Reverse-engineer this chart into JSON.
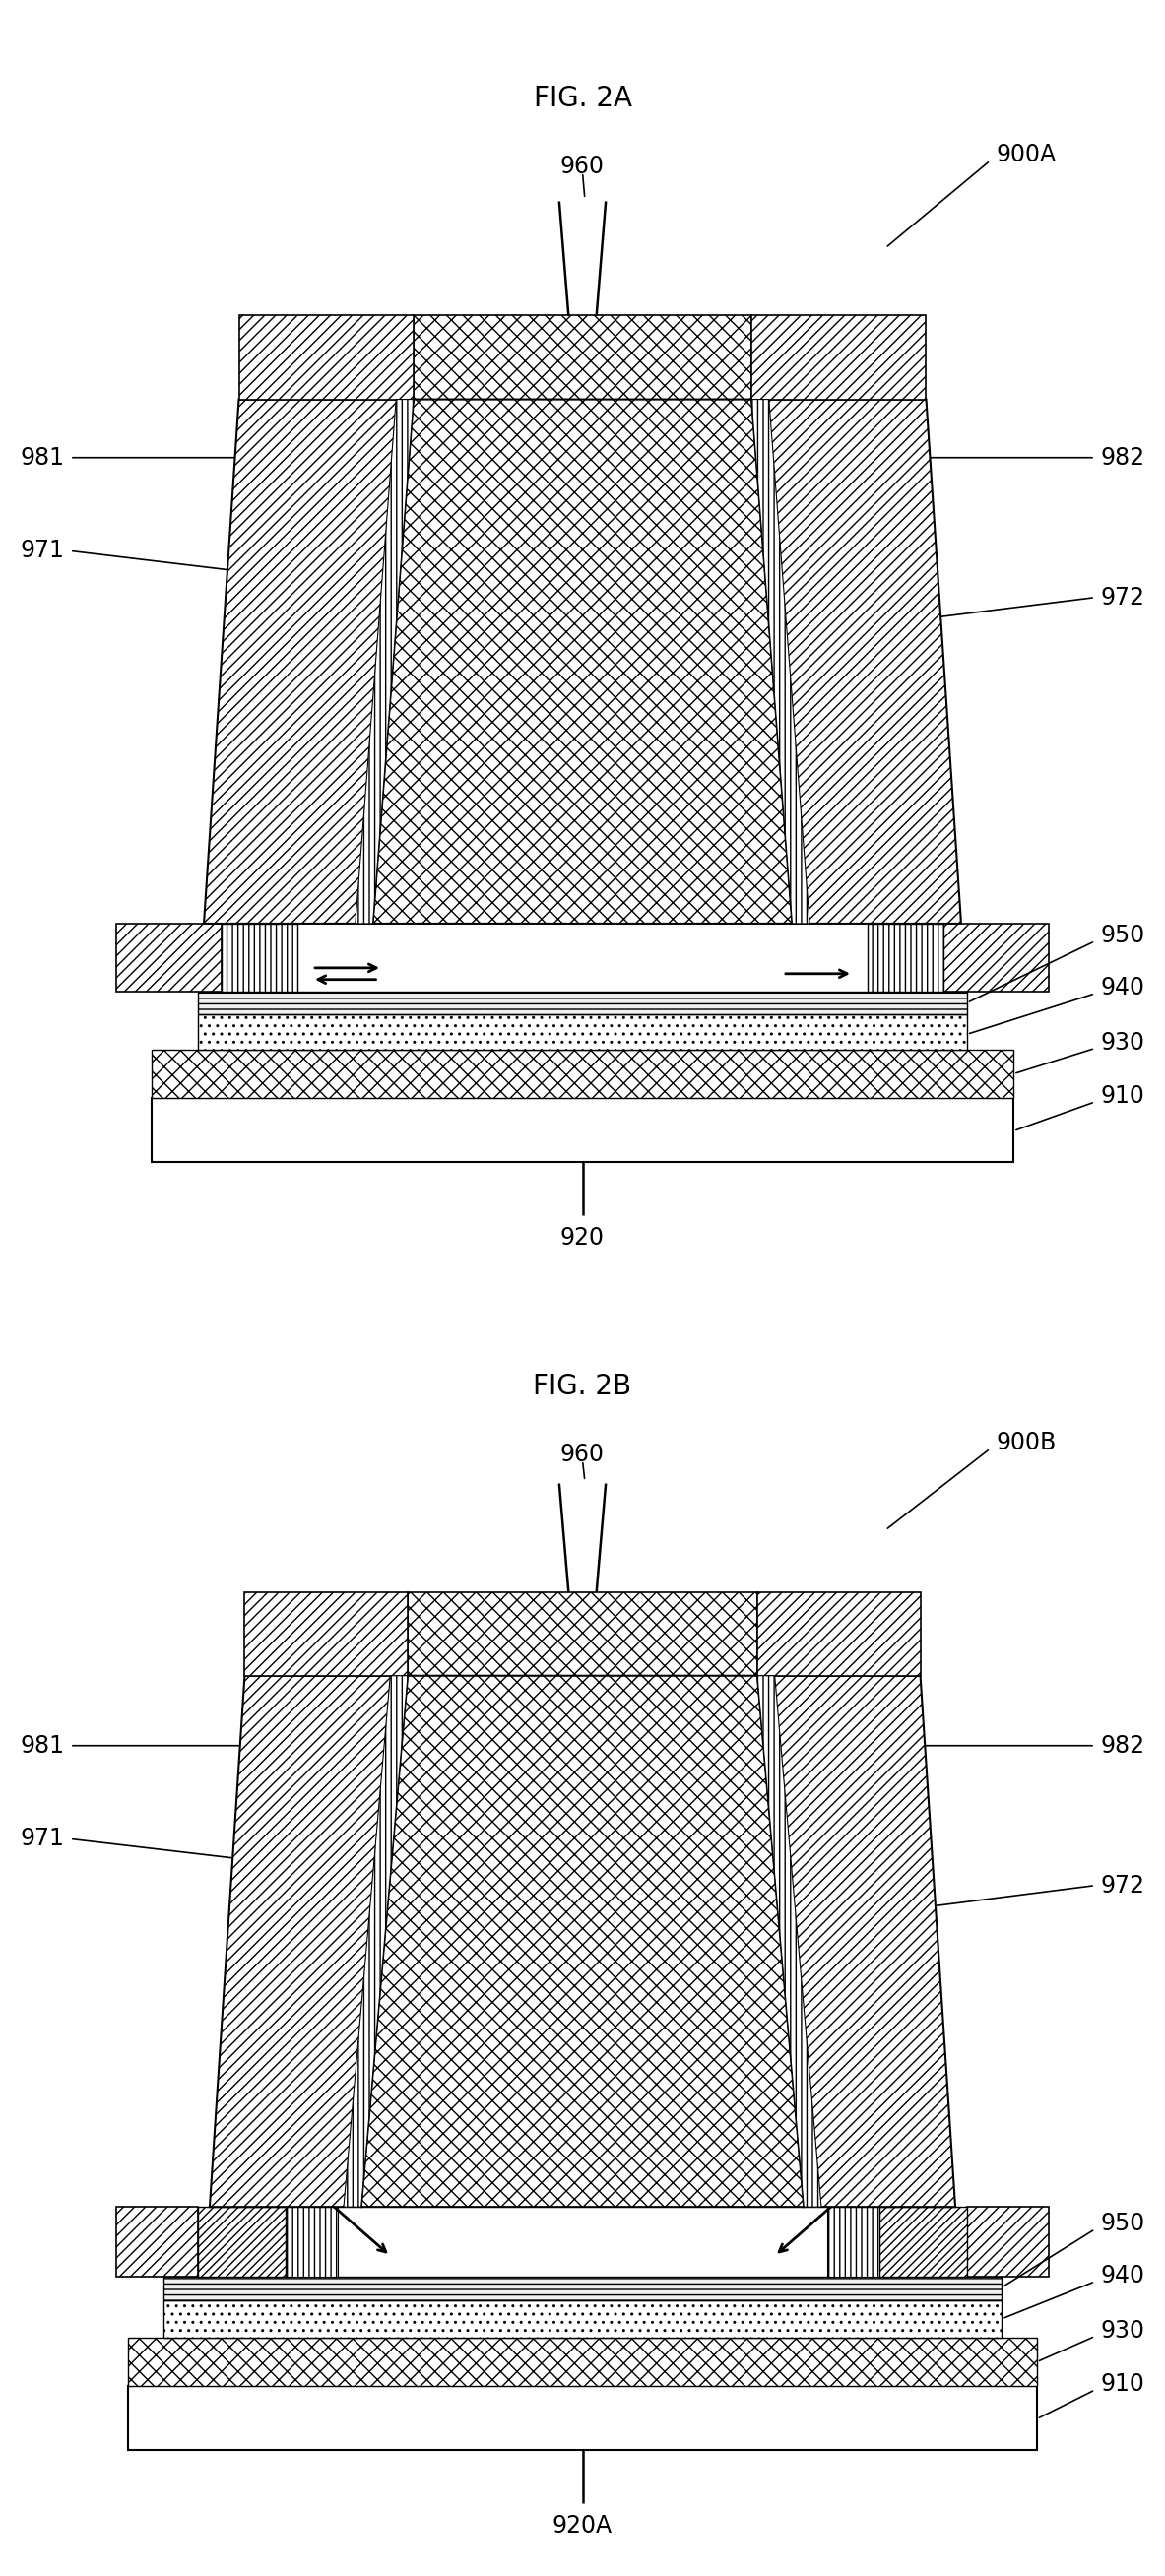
{
  "fig_title_A": "FIG. 2A",
  "fig_title_B": "FIG. 2B",
  "label_900A": "900A",
  "label_900B": "900B",
  "label_960": "960",
  "label_981": "981",
  "label_982": "982",
  "label_971": "971",
  "label_972": "972",
  "label_950": "950",
  "label_940": "940",
  "label_930": "930",
  "label_910": "910",
  "label_920": "920",
  "label_920A": "920A",
  "bg_color": "#ffffff",
  "title_fontsize": 20,
  "label_fontsize": 17
}
